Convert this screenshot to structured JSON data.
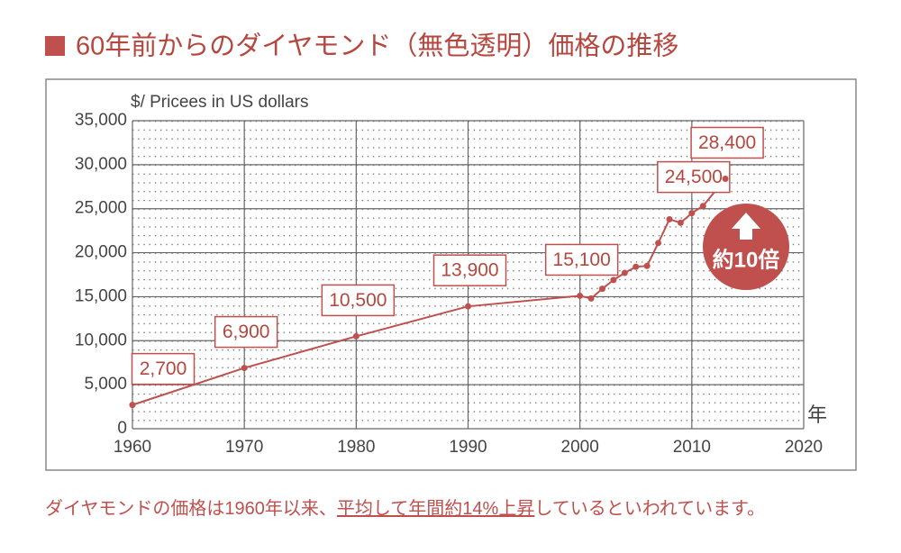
{
  "chart_data": {
    "type": "line",
    "title": "60年前からのダイヤモンド（無色透明）価格の推移",
    "y_label": "$/ Pricees in US dollars",
    "x_label": "年",
    "annotation": "約10倍",
    "footer": {
      "before": "ダイヤモンドの価格は1960年以来、",
      "highlight": "平均して年間約14%上昇",
      "after": "しているといわれています。"
    },
    "x": [
      1960,
      1970,
      1980,
      1990,
      2000,
      2001,
      2002,
      2003,
      2004,
      2005,
      2006,
      2007,
      2008,
      2009,
      2010,
      2011,
      2013
    ],
    "series": [
      {
        "name": "Price",
        "color": "#c0504d",
        "values": [
          2700,
          6900,
          10500,
          13900,
          15100,
          14800,
          15900,
          16900,
          17700,
          18400,
          18500,
          21100,
          23800,
          23400,
          24500,
          25300,
          28400
        ],
        "value_labels": [
          "2,700",
          "6,900",
          "10,500",
          "13,900",
          "15,100",
          null,
          null,
          null,
          null,
          null,
          null,
          null,
          null,
          null,
          "24,500",
          null,
          "28,400"
        ]
      }
    ],
    "xlim": [
      1960,
      2020
    ],
    "ylim": [
      0,
      35000
    ],
    "xticks": [
      1960,
      1970,
      1980,
      1990,
      2000,
      2010,
      2020
    ],
    "yticks": [
      0,
      {
        "value": 5000,
        "label": "5,000"
      },
      {
        "value": 10000,
        "label": "10,000"
      },
      {
        "value": 15000,
        "label": "15,000"
      },
      {
        "value": 20000,
        "label": "20,000"
      },
      {
        "value": 25000,
        "label": "25,000"
      },
      {
        "value": 30000,
        "label": "30,000"
      },
      {
        "value": 35000,
        "label": "35,000"
      }
    ],
    "grid": true
  }
}
